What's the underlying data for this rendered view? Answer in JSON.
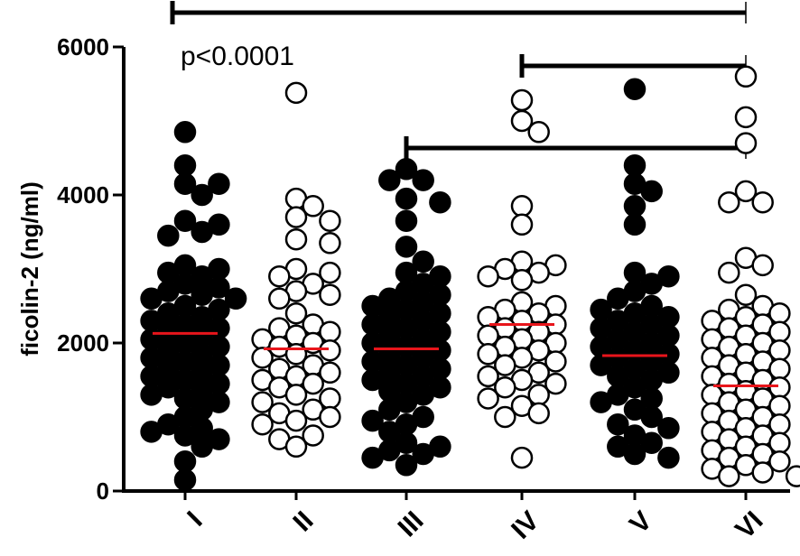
{
  "chart_data": {
    "type": "scatter",
    "ylabel": "ficolin-2 (ng/ml)",
    "ylim": [
      0,
      6000
    ],
    "yticks": [
      0,
      2000,
      4000,
      6000
    ],
    "yticklabels": [
      "0",
      "2000",
      "4000",
      "6000"
    ],
    "categories": [
      "I",
      "II",
      "III",
      "IV",
      "V",
      "VI"
    ],
    "filled": [
      true,
      false,
      true,
      false,
      true,
      false
    ],
    "median_color": "#e8151b",
    "annotation": "p<0.0001",
    "brackets": [
      {
        "from": "I",
        "to": "VI"
      },
      {
        "from": "IV",
        "to": "VI"
      },
      {
        "from": "III",
        "to": "VI"
      }
    ],
    "series": [
      {
        "name": "I",
        "median": 2130,
        "values": [
          4850,
          4400,
          4150,
          4150,
          4000,
          3650,
          3600,
          3500,
          3450,
          3050,
          3000,
          2950,
          2900,
          2800,
          2750,
          2700,
          2650,
          2600,
          2600,
          2500,
          2450,
          2400,
          2350,
          2300,
          2250,
          2200,
          2150,
          2100,
          2050,
          2000,
          1950,
          1900,
          1850,
          1800,
          1750,
          1700,
          1650,
          1600,
          1550,
          1500,
          1450,
          1400,
          1350,
          1300,
          1250,
          1200,
          1100,
          1000,
          900,
          850,
          800,
          750,
          700,
          600,
          400,
          150
        ]
      },
      {
        "name": "II",
        "median": 1920,
        "values": [
          5380,
          3950,
          3850,
          3700,
          3650,
          3400,
          3350,
          3000,
          2950,
          2900,
          2800,
          2700,
          2650,
          2600,
          2400,
          2250,
          2200,
          2150,
          2100,
          2050,
          2000,
          1950,
          1900,
          1850,
          1800,
          1700,
          1650,
          1600,
          1550,
          1500,
          1450,
          1400,
          1300,
          1250,
          1200,
          1100,
          1050,
          1000,
          950,
          900,
          750,
          700,
          600
        ]
      },
      {
        "name": "III",
        "median": 1920,
        "values": [
          4350,
          4200,
          4200,
          3950,
          3900,
          3650,
          3300,
          3100,
          2950,
          2900,
          2800,
          2700,
          2650,
          2600,
          2550,
          2500,
          2450,
          2400,
          2350,
          2300,
          2250,
          2200,
          2150,
          2100,
          2050,
          2000,
          1950,
          1900,
          1850,
          1800,
          1750,
          1700,
          1650,
          1600,
          1550,
          1500,
          1450,
          1400,
          1350,
          1300,
          1200,
          1100,
          1000,
          950,
          900,
          800,
          650,
          600,
          550,
          500,
          450,
          350
        ]
      },
      {
        "name": "IV",
        "median": 2250,
        "values": [
          5280,
          5000,
          4850,
          3850,
          3600,
          3100,
          3050,
          3000,
          2950,
          2900,
          2850,
          2550,
          2500,
          2450,
          2400,
          2350,
          2300,
          2250,
          2200,
          2150,
          2100,
          2050,
          2000,
          1950,
          1900,
          1850,
          1800,
          1750,
          1700,
          1600,
          1550,
          1500,
          1450,
          1400,
          1300,
          1250,
          1150,
          1050,
          1000,
          450
        ]
      },
      {
        "name": "V",
        "median": 1830,
        "values": [
          5430,
          4400,
          4150,
          4050,
          3850,
          3600,
          2950,
          2900,
          2800,
          2700,
          2600,
          2500,
          2450,
          2400,
          2350,
          2300,
          2250,
          2200,
          2150,
          2100,
          2050,
          2000,
          1950,
          1900,
          1850,
          1800,
          1750,
          1700,
          1650,
          1600,
          1550,
          1500,
          1400,
          1300,
          1250,
          1200,
          1100,
          1000,
          900,
          850,
          750,
          650,
          600,
          500,
          450
        ]
      },
      {
        "name": "VI",
        "median": 1420,
        "values": [
          5600,
          5050,
          4700,
          4050,
          3900,
          3900,
          3150,
          3050,
          2950,
          2650,
          2500,
          2450,
          2400,
          2350,
          2300,
          2250,
          2200,
          2150,
          2100,
          2050,
          2000,
          1950,
          1900,
          1850,
          1800,
          1750,
          1700,
          1650,
          1600,
          1550,
          1500,
          1450,
          1400,
          1350,
          1300,
          1250,
          1200,
          1150,
          1100,
          1050,
          1000,
          950,
          900,
          850,
          800,
          750,
          700,
          650,
          600,
          550,
          500,
          450,
          400,
          350,
          300,
          250,
          200,
          200
        ]
      }
    ]
  }
}
